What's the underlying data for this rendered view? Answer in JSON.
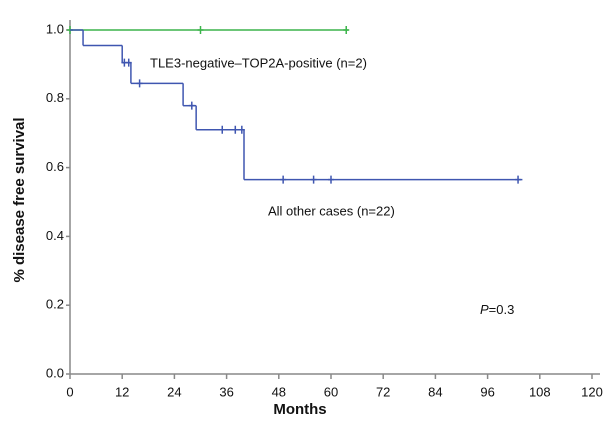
{
  "chart_data": {
    "type": "step",
    "xlabel": "Months",
    "ylabel": "% disease free survival",
    "xlim": [
      0,
      120
    ],
    "xticks": [
      0,
      12,
      24,
      36,
      48,
      60,
      72,
      84,
      96,
      108,
      120
    ],
    "ylim": [
      0,
      1
    ],
    "yticks": [
      {
        "value": 0,
        "label": "0.0"
      },
      0.2,
      0.4,
      0.6,
      0.8,
      {
        "value": 1,
        "label": "1.0"
      }
    ],
    "series": [
      {
        "name": "TLE3-negative–TOP2A-positive (n=2)",
        "color": "#3cb44b",
        "x": [
          0,
          64
        ],
        "values": [
          1,
          1
        ],
        "censor_x": [
          0,
          30,
          63.5
        ],
        "censor_values": [
          1,
          1,
          1
        ]
      },
      {
        "name": "All other cases (n=22)",
        "color": "#3f56b0",
        "x": [
          0,
          3,
          12,
          14,
          26,
          29,
          40,
          104
        ],
        "values": [
          1,
          0.955,
          0.905,
          0.845,
          0.78,
          0.71,
          0.565,
          0.565
        ],
        "censor_x": [
          12.5,
          13.5,
          16,
          28,
          35,
          38,
          39.5,
          49,
          56,
          60,
          103
        ],
        "censor_values": [
          0.905,
          0.905,
          0.845,
          0.78,
          0.71,
          0.71,
          0.71,
          0.565,
          0.565,
          0.565,
          0.565
        ]
      }
    ],
    "annotation": {
      "italic": "P",
      "text": "=0.3"
    }
  }
}
